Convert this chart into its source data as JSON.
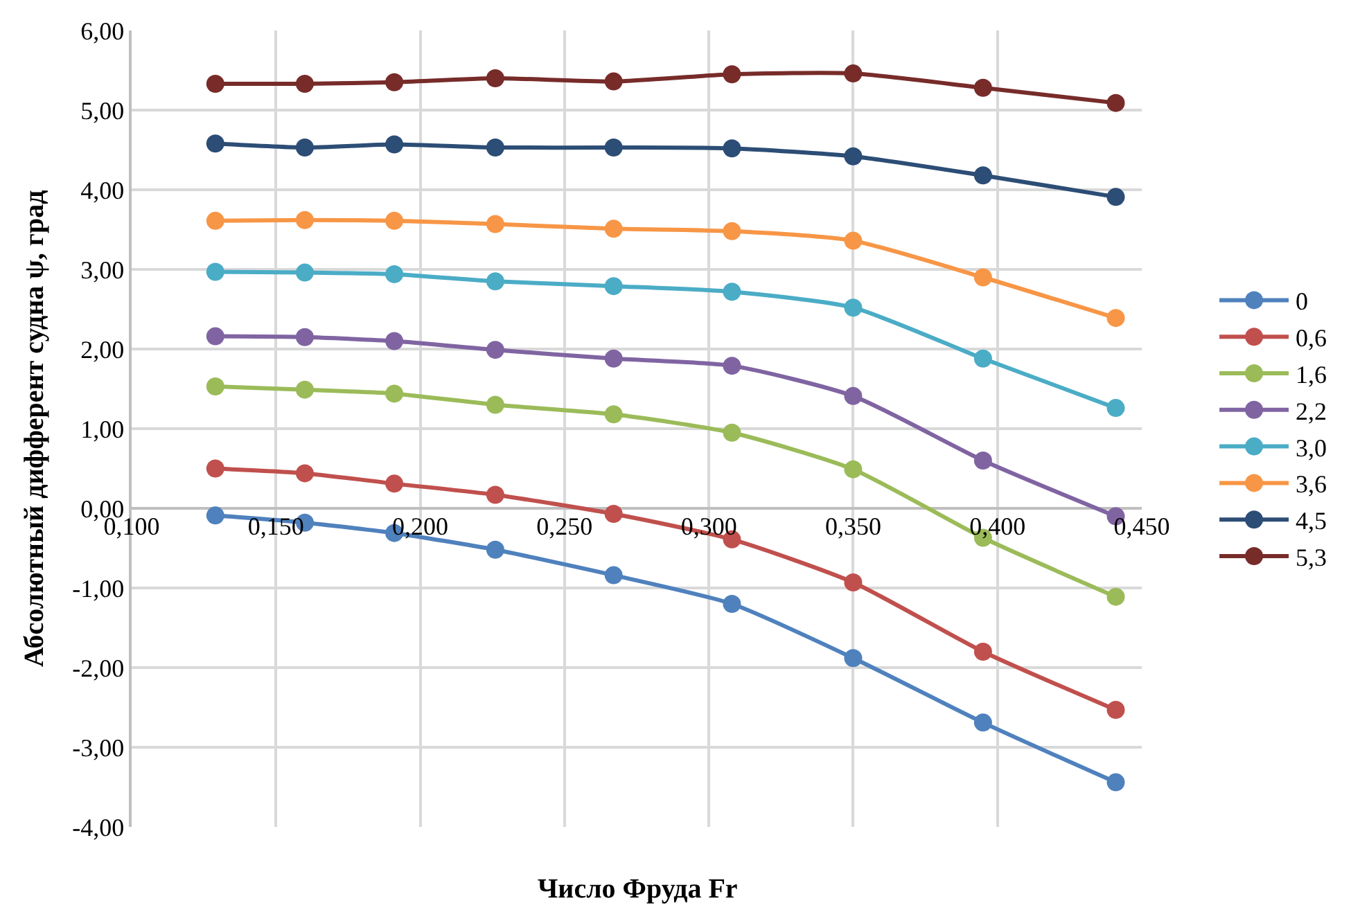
{
  "chart_data": {
    "type": "line",
    "xlabel": "Число Фруда Fr",
    "ylabel": "Абсолютный дифферент судна ψ, град",
    "x": [
      0.129,
      0.16,
      0.191,
      0.226,
      0.267,
      0.308,
      0.35,
      0.395,
      0.441
    ],
    "series": [
      {
        "name": "0",
        "color": "#4f81bd",
        "values": [
          -0.09,
          -0.18,
          -0.31,
          -0.52,
          -0.84,
          -1.2,
          -1.88,
          -2.69,
          -3.44
        ]
      },
      {
        "name": "0,6",
        "color": "#c0504d",
        "values": [
          0.5,
          0.44,
          0.31,
          0.17,
          -0.07,
          -0.39,
          -0.93,
          -1.8,
          -2.53
        ]
      },
      {
        "name": "1,6",
        "color": "#9bbb59",
        "values": [
          1.53,
          1.49,
          1.44,
          1.3,
          1.18,
          0.95,
          0.49,
          -0.37,
          -1.11
        ]
      },
      {
        "name": "2,2",
        "color": "#8064a2",
        "values": [
          2.16,
          2.15,
          2.1,
          1.99,
          1.88,
          1.79,
          1.41,
          0.6,
          -0.1
        ]
      },
      {
        "name": "3,0",
        "color": "#4bacc6",
        "values": [
          2.97,
          2.96,
          2.94,
          2.85,
          2.79,
          2.72,
          2.52,
          1.88,
          1.26
        ]
      },
      {
        "name": "3,6",
        "color": "#f79646",
        "values": [
          3.61,
          3.62,
          3.61,
          3.57,
          3.51,
          3.48,
          3.36,
          2.9,
          2.39
        ]
      },
      {
        "name": "4,5",
        "color": "#2c4d75",
        "values": [
          4.58,
          4.53,
          4.57,
          4.53,
          4.53,
          4.52,
          4.42,
          4.18,
          3.91
        ]
      },
      {
        "name": "5,3",
        "color": "#772c2a",
        "values": [
          5.33,
          5.33,
          5.35,
          5.4,
          5.36,
          5.45,
          5.46,
          5.28,
          5.09
        ]
      }
    ],
    "xlim": [
      0.1,
      0.45
    ],
    "xticks": [
      {
        "value": 0.1,
        "label": "0,100"
      },
      {
        "value": 0.15,
        "label": "0,150"
      },
      {
        "value": 0.2,
        "label": "0,200"
      },
      {
        "value": 0.25,
        "label": "0,250"
      },
      {
        "value": 0.3,
        "label": "0,300"
      },
      {
        "value": 0.35,
        "label": "0,350"
      },
      {
        "value": 0.4,
        "label": "0,400"
      },
      {
        "value": 0.45,
        "label": "0,450"
      }
    ],
    "ylim": [
      -4,
      6
    ],
    "yticks": [
      {
        "value": -4,
        "label": "-4,00"
      },
      {
        "value": -3,
        "label": "-3,00"
      },
      {
        "value": -2,
        "label": "-2,00"
      },
      {
        "value": -1,
        "label": "-1,00"
      },
      {
        "value": 0,
        "label": "0,00"
      },
      {
        "value": 1,
        "label": "1,00"
      },
      {
        "value": 2,
        "label": "2,00"
      },
      {
        "value": 3,
        "label": "3,00"
      },
      {
        "value": 4,
        "label": "4,00"
      },
      {
        "value": 5,
        "label": "5,00"
      },
      {
        "value": 6,
        "label": "6,00"
      }
    ],
    "grid": true,
    "legend": "right",
    "marker": "circle",
    "line_style": "solid"
  }
}
